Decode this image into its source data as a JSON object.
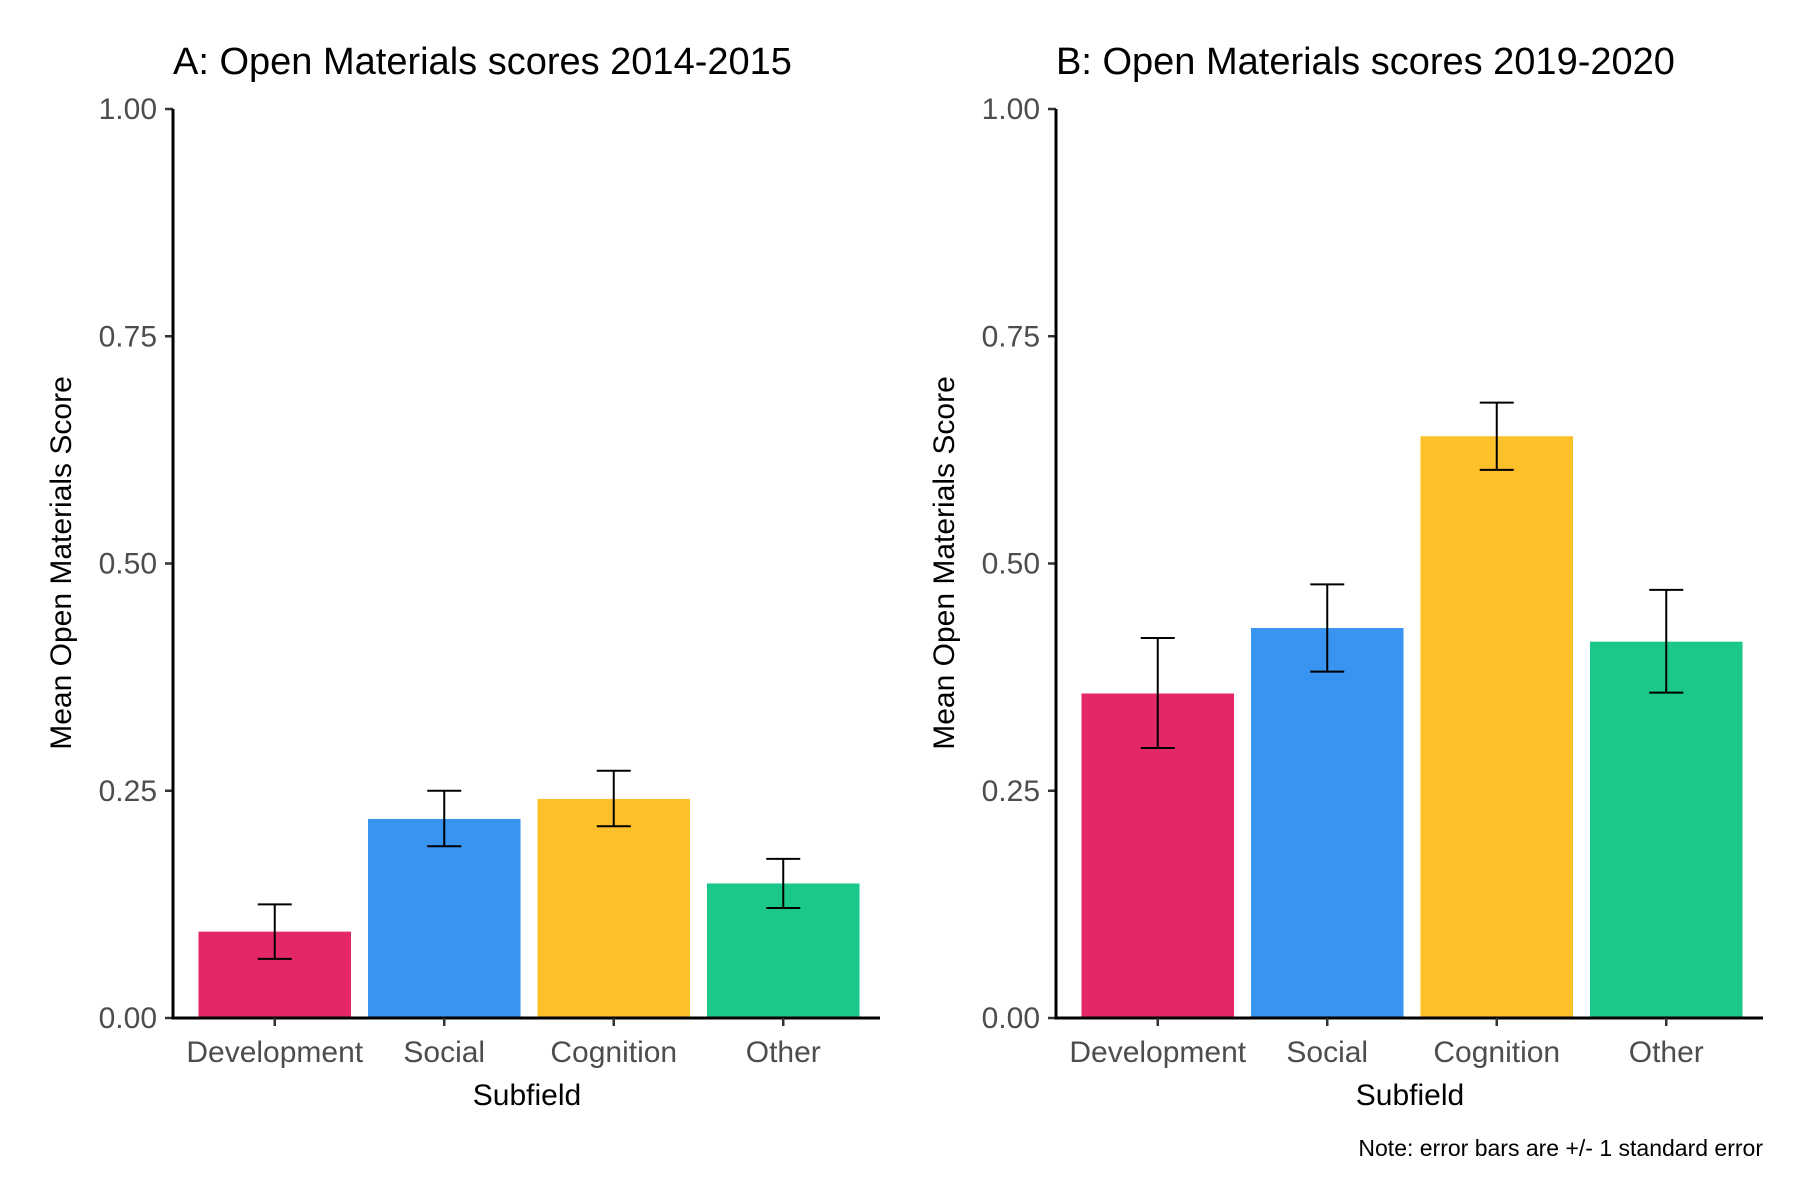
{
  "chart_data": [
    {
      "type": "bar",
      "title": "A: Open Materials scores 2014-2015",
      "xlabel": "Subfield",
      "ylabel": "Mean Open Materials Score",
      "categories": [
        "Development",
        "Social",
        "Cognition",
        "Other"
      ],
      "values": [
        0.095,
        0.219,
        0.241,
        0.148
      ],
      "error_low": [
        0.065,
        0.189,
        0.211,
        0.121
      ],
      "error_high": [
        0.125,
        0.25,
        0.272,
        0.175
      ],
      "ylim": [
        0,
        1
      ],
      "yticks": [
        0,
        0.25,
        0.5,
        0.75,
        1.0
      ],
      "ytick_labels": [
        "0.00",
        "0.25",
        "0.50",
        "0.75",
        "1.00"
      ],
      "grid": false,
      "legend": "none"
    },
    {
      "type": "bar",
      "title": "B: Open Materials scores 2019-2020",
      "xlabel": "Subfield",
      "ylabel": "Mean Open Materials Score",
      "categories": [
        "Development",
        "Social",
        "Cognition",
        "Other"
      ],
      "values": [
        0.357,
        0.429,
        0.64,
        0.414
      ],
      "error_low": [
        0.297,
        0.381,
        0.603,
        0.358
      ],
      "error_high": [
        0.418,
        0.477,
        0.677,
        0.471
      ],
      "ylim": [
        0,
        1
      ],
      "yticks": [
        0,
        0.25,
        0.5,
        0.75,
        1.0
      ],
      "ytick_labels": [
        "0.00",
        "0.25",
        "0.50",
        "0.75",
        "1.00"
      ],
      "grid": false,
      "legend": "none"
    }
  ],
  "bar_colors": [
    "#e42767",
    "#3893f1",
    "#fcc12a",
    "#1bc789"
  ],
  "note": "Note: error bars are +/- 1 standard error"
}
